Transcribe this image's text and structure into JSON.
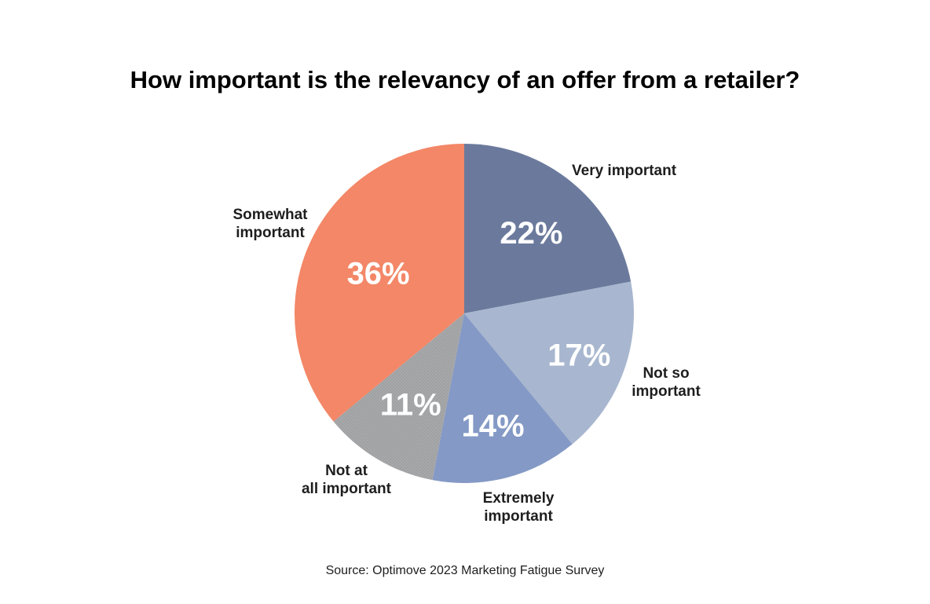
{
  "chart_data": {
    "type": "pie",
    "title": "How important is the relevancy of an offer from a retailer?",
    "source": "Source: Optimove 2023 Marketing Fatigue Survey",
    "slices": [
      {
        "label": [
          "Very important"
        ],
        "value": 22,
        "value_label": "22%",
        "color": "#6b7a9c"
      },
      {
        "label": [
          "Not so",
          "important"
        ],
        "value": 17,
        "value_label": "17%",
        "color": "#a8b7cf"
      },
      {
        "label": [
          "Extremely",
          "important"
        ],
        "value": 14,
        "value_label": "14%",
        "color": "#8499c5"
      },
      {
        "label": [
          "Not at",
          "all important"
        ],
        "value": 11,
        "value_label": "11%",
        "color": "#a7a8aa",
        "pattern": "dotted"
      },
      {
        "label": [
          "Somewhat",
          "important"
        ],
        "value": 36,
        "value_label": "36%",
        "color": "#f38767"
      }
    ],
    "start_angle": "12 o'clock",
    "direction": "clockwise",
    "legend": "none"
  }
}
